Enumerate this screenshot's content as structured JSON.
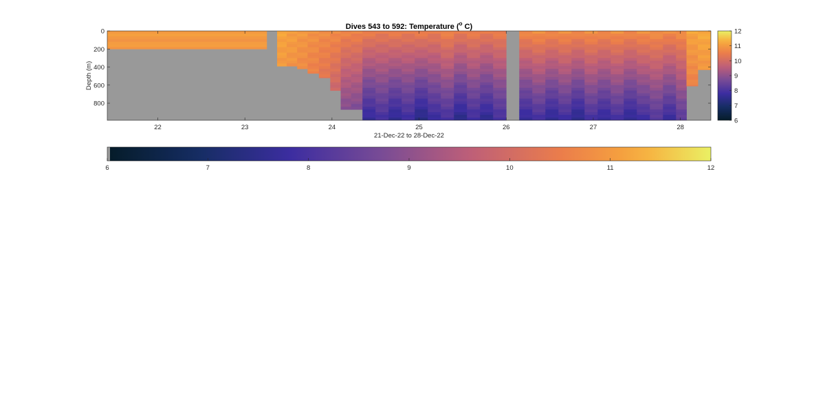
{
  "chart_data": {
    "type": "heatmap",
    "title_main": "Dives 543 to 592: Temperature (",
    "title_sup": "o",
    "title_end": " C)",
    "xlabel": "21-Dec-22 to 28-Dec-22",
    "ylabel": "Depth (m)",
    "xlim": [
      21.42,
      28.35
    ],
    "ylim": [
      0,
      990
    ],
    "y_reversed": true,
    "x_ticks": [
      "22",
      "23",
      "24",
      "25",
      "26",
      "27",
      "28"
    ],
    "x_tick_values": [
      22,
      23,
      24,
      25,
      26,
      27,
      28
    ],
    "y_ticks": [
      "0",
      "200",
      "400",
      "600",
      "800"
    ],
    "y_tick_values": [
      0,
      200,
      400,
      600,
      800
    ],
    "clim": [
      6,
      12
    ],
    "colorbar_ticks": [
      "6",
      "7",
      "8",
      "9",
      "10",
      "11",
      "12"
    ],
    "colorbar_tick_values": [
      6,
      7,
      8,
      9,
      10,
      11,
      12
    ],
    "no_data_color": "#999999",
    "profiles": [
      {
        "t0": 21.42,
        "t1": 23.25,
        "max_depth": 200,
        "surface_temp": 11.0,
        "bottom_temp": 10.9
      },
      {
        "t0": 23.25,
        "t1": 23.37,
        "max_depth": 0,
        "surface_temp": 11.0,
        "bottom_temp": 11.0
      },
      {
        "t0": 23.37,
        "t1": 23.48,
        "max_depth": 390,
        "surface_temp": 11.2,
        "bottom_temp": 10.7
      },
      {
        "t0": 23.48,
        "t1": 23.6,
        "max_depth": 390,
        "surface_temp": 11.1,
        "bottom_temp": 10.6
      },
      {
        "t0": 23.6,
        "t1": 23.72,
        "max_depth": 420,
        "surface_temp": 11.0,
        "bottom_temp": 10.4
      },
      {
        "t0": 23.72,
        "t1": 23.85,
        "max_depth": 470,
        "surface_temp": 10.9,
        "bottom_temp": 10.2
      },
      {
        "t0": 23.85,
        "t1": 23.98,
        "max_depth": 520,
        "surface_temp": 10.8,
        "bottom_temp": 9.9
      },
      {
        "t0": 23.98,
        "t1": 24.1,
        "max_depth": 660,
        "surface_temp": 10.8,
        "bottom_temp": 9.4
      },
      {
        "t0": 24.1,
        "t1": 24.22,
        "max_depth": 870,
        "surface_temp": 10.7,
        "bottom_temp": 8.6
      },
      {
        "t0": 24.22,
        "t1": 24.35,
        "max_depth": 870,
        "surface_temp": 10.7,
        "bottom_temp": 8.5
      },
      {
        "t0": 24.35,
        "t1": 24.5,
        "max_depth": 990,
        "surface_temp": 10.6,
        "bottom_temp": 7.6
      },
      {
        "t0": 24.5,
        "t1": 24.65,
        "max_depth": 990,
        "surface_temp": 10.5,
        "bottom_temp": 7.9
      },
      {
        "t0": 24.65,
        "t1": 24.8,
        "max_depth": 990,
        "surface_temp": 10.6,
        "bottom_temp": 7.5
      },
      {
        "t0": 24.8,
        "t1": 24.95,
        "max_depth": 990,
        "surface_temp": 10.5,
        "bottom_temp": 7.8
      },
      {
        "t0": 24.95,
        "t1": 25.1,
        "max_depth": 990,
        "surface_temp": 10.6,
        "bottom_temp": 7.3
      },
      {
        "t0": 25.1,
        "t1": 25.25,
        "max_depth": 990,
        "surface_temp": 10.5,
        "bottom_temp": 7.7
      },
      {
        "t0": 25.25,
        "t1": 25.4,
        "max_depth": 990,
        "surface_temp": 10.7,
        "bottom_temp": 7.9
      },
      {
        "t0": 25.4,
        "t1": 25.55,
        "max_depth": 990,
        "surface_temp": 10.5,
        "bottom_temp": 7.4
      },
      {
        "t0": 25.55,
        "t1": 25.7,
        "max_depth": 990,
        "surface_temp": 10.6,
        "bottom_temp": 7.8
      },
      {
        "t0": 25.7,
        "t1": 25.85,
        "max_depth": 990,
        "surface_temp": 10.5,
        "bottom_temp": 7.5
      },
      {
        "t0": 25.85,
        "t1": 26.0,
        "max_depth": 990,
        "surface_temp": 10.6,
        "bottom_temp": 7.9
      },
      {
        "t0": 26.0,
        "t1": 26.15,
        "max_depth": 0,
        "surface_temp": 10.6,
        "bottom_temp": 10.6
      },
      {
        "t0": 26.15,
        "t1": 26.3,
        "max_depth": 990,
        "surface_temp": 10.8,
        "bottom_temp": 7.6
      },
      {
        "t0": 26.3,
        "t1": 26.45,
        "max_depth": 990,
        "surface_temp": 10.9,
        "bottom_temp": 7.9
      },
      {
        "t0": 26.45,
        "t1": 26.6,
        "max_depth": 990,
        "surface_temp": 10.8,
        "bottom_temp": 7.5
      },
      {
        "t0": 26.6,
        "t1": 26.75,
        "max_depth": 990,
        "surface_temp": 10.9,
        "bottom_temp": 7.8
      },
      {
        "t0": 26.75,
        "t1": 26.9,
        "max_depth": 990,
        "surface_temp": 10.8,
        "bottom_temp": 7.4
      },
      {
        "t0": 26.9,
        "t1": 27.05,
        "max_depth": 990,
        "surface_temp": 10.9,
        "bottom_temp": 7.9
      },
      {
        "t0": 27.05,
        "t1": 27.2,
        "max_depth": 990,
        "surface_temp": 10.8,
        "bottom_temp": 7.6
      },
      {
        "t0": 27.2,
        "t1": 27.35,
        "max_depth": 990,
        "surface_temp": 10.9,
        "bottom_temp": 7.9
      },
      {
        "t0": 27.35,
        "t1": 27.5,
        "max_depth": 990,
        "surface_temp": 10.8,
        "bottom_temp": 7.5
      },
      {
        "t0": 27.5,
        "t1": 27.65,
        "max_depth": 990,
        "surface_temp": 10.9,
        "bottom_temp": 7.8
      },
      {
        "t0": 27.65,
        "t1": 27.8,
        "max_depth": 990,
        "surface_temp": 10.9,
        "bottom_temp": 8.1
      },
      {
        "t0": 27.8,
        "t1": 27.95,
        "max_depth": 990,
        "surface_temp": 10.8,
        "bottom_temp": 7.7
      },
      {
        "t0": 27.95,
        "t1": 28.07,
        "max_depth": 990,
        "surface_temp": 10.9,
        "bottom_temp": 8.2
      },
      {
        "t0": 28.07,
        "t1": 28.2,
        "max_depth": 610,
        "surface_temp": 11.2,
        "bottom_temp": 10.2
      },
      {
        "t0": 28.2,
        "t1": 28.35,
        "max_depth": 430,
        "surface_temp": 11.3,
        "bottom_temp": 10.5
      }
    ]
  }
}
